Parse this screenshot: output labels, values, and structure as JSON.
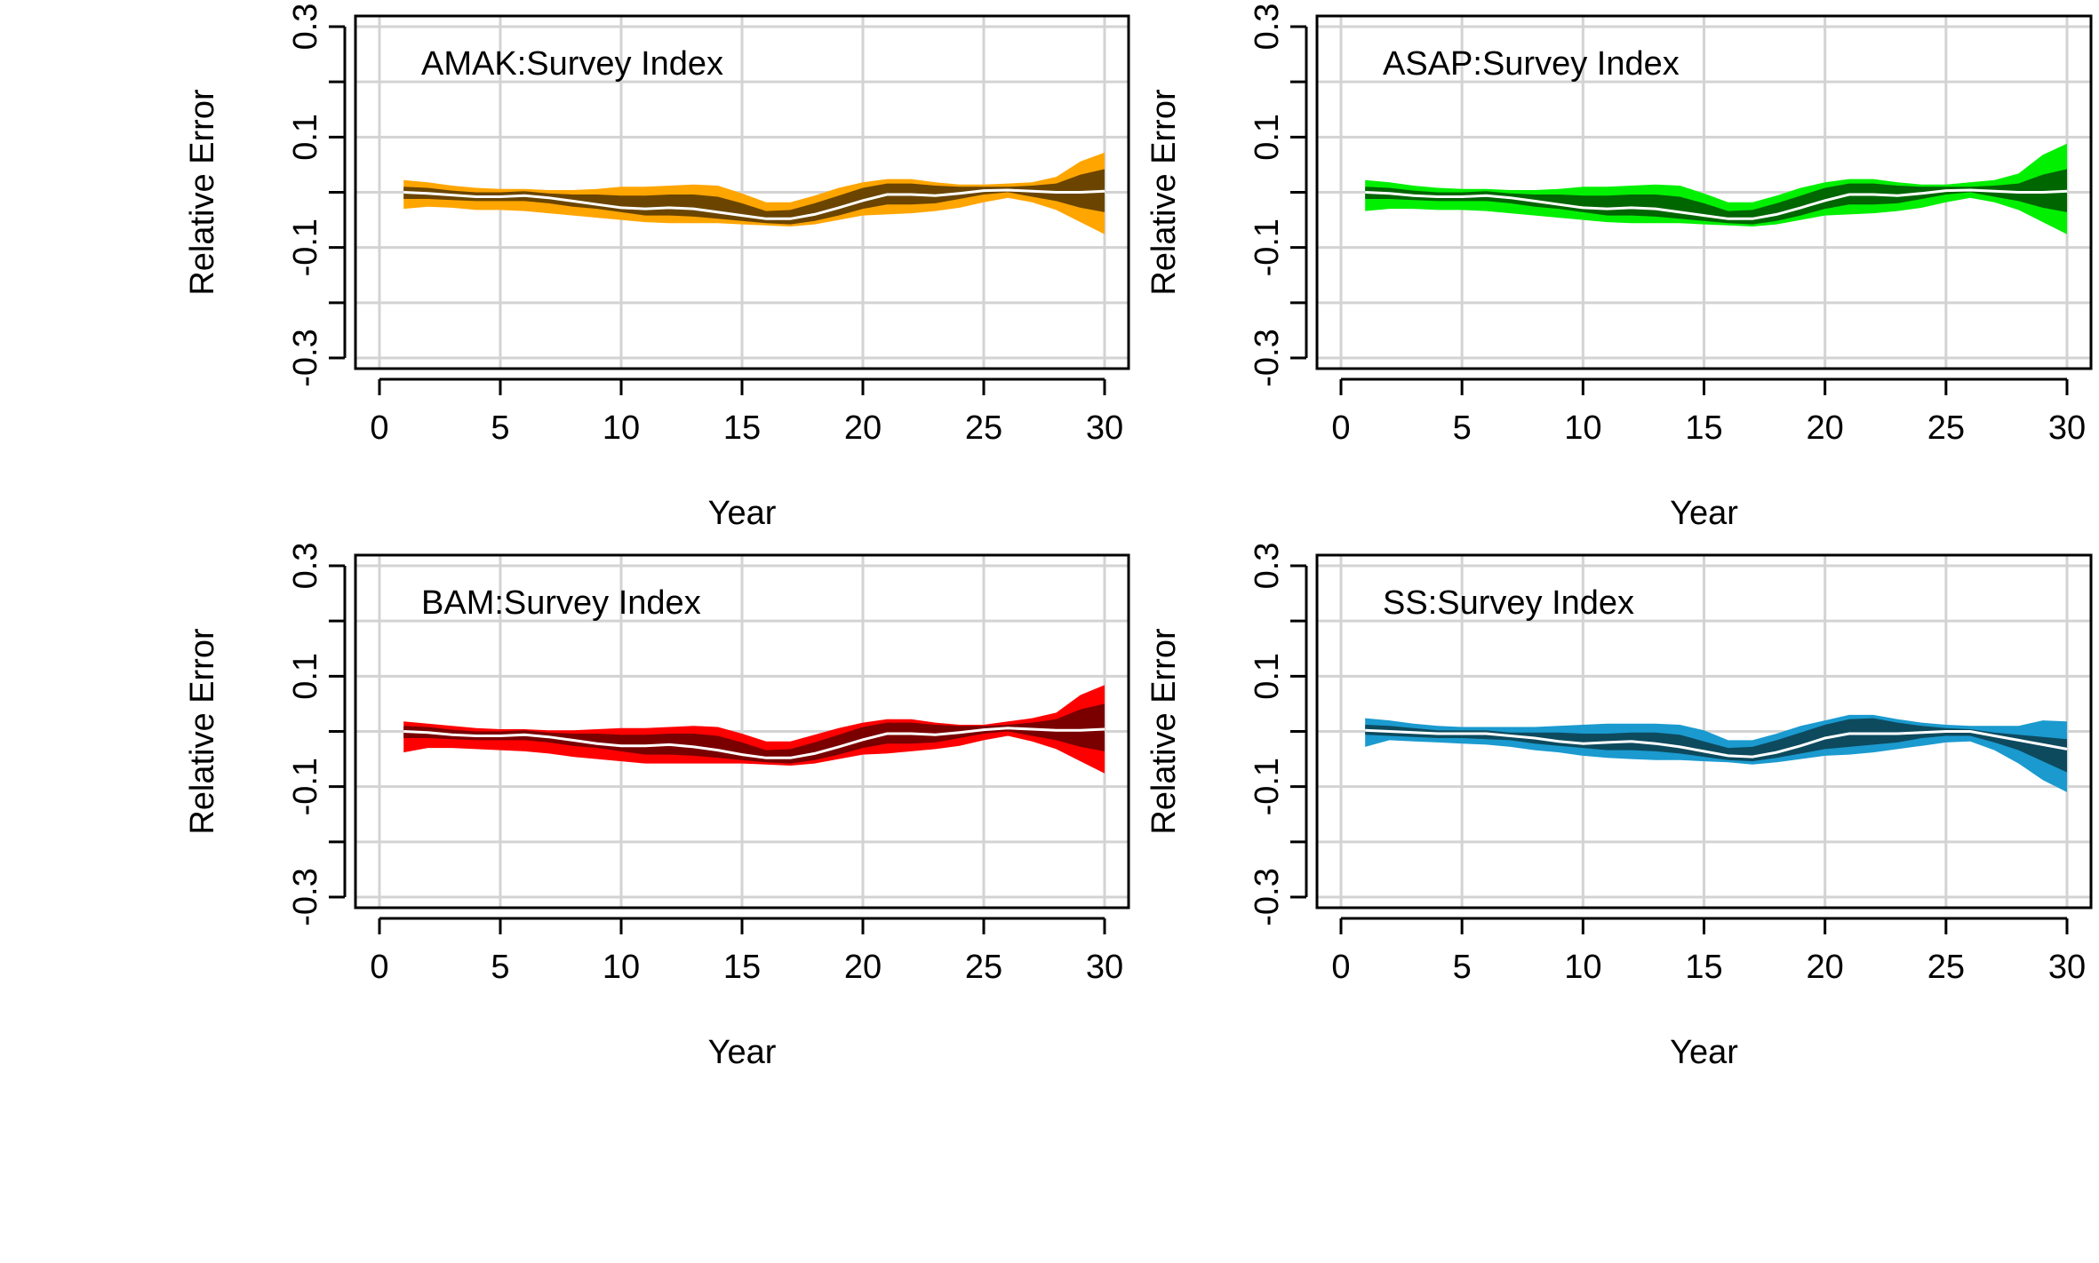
{
  "figure": {
    "background": "#ffffff"
  },
  "chart_data": [
    {
      "type": "area",
      "title": "AMAK:Survey Index",
      "xlabel": "Year",
      "ylabel": "Relative Error",
      "xlim": [
        0,
        30
      ],
      "ylim": [
        -0.3,
        0.3
      ],
      "xticks": [
        0,
        5,
        10,
        15,
        20,
        25,
        30
      ],
      "xtick_labels": [
        "0",
        "5",
        "10",
        "15",
        "20",
        "25",
        "30"
      ],
      "yticks": [
        -0.3,
        -0.2,
        -0.1,
        0.0,
        0.1,
        0.2,
        0.3
      ],
      "ytick_labels": [
        "-0.3",
        "",
        "-0.1",
        "",
        "0.1",
        "",
        "0.3"
      ],
      "grid": true,
      "colors": {
        "outer": "#FFA500",
        "inner": "#6B4500",
        "median": "#ffffff"
      },
      "x": [
        1,
        2,
        3,
        4,
        5,
        6,
        7,
        8,
        9,
        10,
        11,
        12,
        13,
        14,
        15,
        16,
        17,
        18,
        19,
        20,
        21,
        22,
        23,
        24,
        25,
        26,
        27,
        28,
        29,
        30
      ],
      "series": [
        {
          "name": "median",
          "values": [
            0.0,
            -0.002,
            -0.005,
            -0.008,
            -0.008,
            -0.006,
            -0.01,
            -0.016,
            -0.022,
            -0.028,
            -0.03,
            -0.028,
            -0.03,
            -0.036,
            -0.042,
            -0.048,
            -0.048,
            -0.04,
            -0.028,
            -0.015,
            -0.004,
            -0.004,
            -0.006,
            -0.002,
            0.003,
            0.004,
            0.002,
            0.0,
            0.0,
            0.002
          ]
        },
        {
          "name": "inner_upper",
          "values": [
            0.01,
            0.008,
            0.003,
            0.0,
            0.0,
            0.002,
            -0.002,
            -0.004,
            -0.004,
            -0.006,
            -0.006,
            -0.004,
            -0.004,
            -0.008,
            -0.02,
            -0.034,
            -0.032,
            -0.02,
            -0.006,
            0.008,
            0.016,
            0.016,
            0.012,
            0.01,
            0.01,
            0.01,
            0.012,
            0.016,
            0.032,
            0.042
          ]
        },
        {
          "name": "inner_lower",
          "values": [
            -0.012,
            -0.012,
            -0.014,
            -0.016,
            -0.016,
            -0.016,
            -0.02,
            -0.026,
            -0.03,
            -0.036,
            -0.042,
            -0.042,
            -0.044,
            -0.048,
            -0.052,
            -0.056,
            -0.058,
            -0.052,
            -0.042,
            -0.03,
            -0.022,
            -0.022,
            -0.02,
            -0.012,
            -0.004,
            0.0,
            -0.008,
            -0.016,
            -0.028,
            -0.036
          ]
        },
        {
          "name": "outer_upper",
          "values": [
            0.022,
            0.018,
            0.012,
            0.008,
            0.006,
            0.006,
            0.004,
            0.004,
            0.006,
            0.01,
            0.01,
            0.012,
            0.014,
            0.012,
            -0.002,
            -0.018,
            -0.018,
            -0.006,
            0.008,
            0.018,
            0.024,
            0.024,
            0.018,
            0.014,
            0.014,
            0.016,
            0.018,
            0.028,
            0.056,
            0.072
          ]
        },
        {
          "name": "outer_lower",
          "values": [
            -0.03,
            -0.026,
            -0.028,
            -0.032,
            -0.032,
            -0.034,
            -0.038,
            -0.042,
            -0.046,
            -0.05,
            -0.054,
            -0.056,
            -0.056,
            -0.056,
            -0.058,
            -0.06,
            -0.062,
            -0.058,
            -0.05,
            -0.042,
            -0.04,
            -0.038,
            -0.034,
            -0.028,
            -0.018,
            -0.01,
            -0.018,
            -0.032,
            -0.054,
            -0.076
          ]
        }
      ]
    },
    {
      "type": "area",
      "title": "ASAP:Survey Index",
      "xlabel": "Year",
      "ylabel": "Relative Error",
      "xlim": [
        0,
        30
      ],
      "ylim": [
        -0.3,
        0.3
      ],
      "xticks": [
        0,
        5,
        10,
        15,
        20,
        25,
        30
      ],
      "xtick_labels": [
        "0",
        "5",
        "10",
        "15",
        "20",
        "25",
        "30"
      ],
      "yticks": [
        -0.3,
        -0.2,
        -0.1,
        0.0,
        0.1,
        0.2,
        0.3
      ],
      "ytick_labels": [
        "-0.3",
        "",
        "-0.1",
        "",
        "0.1",
        "",
        "0.3"
      ],
      "grid": true,
      "colors": {
        "outer": "#00F000",
        "inner": "#006600",
        "median": "#ffffff"
      },
      "x": [
        1,
        2,
        3,
        4,
        5,
        6,
        7,
        8,
        9,
        10,
        11,
        12,
        13,
        14,
        15,
        16,
        17,
        18,
        19,
        20,
        21,
        22,
        23,
        24,
        25,
        26,
        27,
        28,
        29,
        30
      ],
      "series": [
        {
          "name": "median",
          "values": [
            0.0,
            -0.002,
            -0.006,
            -0.008,
            -0.008,
            -0.006,
            -0.01,
            -0.016,
            -0.022,
            -0.028,
            -0.03,
            -0.028,
            -0.03,
            -0.036,
            -0.042,
            -0.048,
            -0.048,
            -0.04,
            -0.028,
            -0.015,
            -0.004,
            -0.004,
            -0.006,
            -0.002,
            0.003,
            0.004,
            0.002,
            0.0,
            0.0,
            0.002
          ]
        },
        {
          "name": "inner_upper",
          "values": [
            0.01,
            0.008,
            0.003,
            0.0,
            0.0,
            0.002,
            -0.002,
            -0.004,
            -0.004,
            -0.006,
            -0.006,
            -0.004,
            -0.004,
            -0.008,
            -0.02,
            -0.034,
            -0.032,
            -0.02,
            -0.006,
            0.008,
            0.016,
            0.016,
            0.012,
            0.01,
            0.01,
            0.01,
            0.012,
            0.016,
            0.032,
            0.042
          ]
        },
        {
          "name": "inner_lower",
          "values": [
            -0.012,
            -0.012,
            -0.014,
            -0.016,
            -0.016,
            -0.016,
            -0.02,
            -0.026,
            -0.03,
            -0.036,
            -0.042,
            -0.042,
            -0.044,
            -0.048,
            -0.052,
            -0.056,
            -0.058,
            -0.052,
            -0.042,
            -0.03,
            -0.022,
            -0.022,
            -0.02,
            -0.012,
            -0.004,
            0.0,
            -0.008,
            -0.016,
            -0.028,
            -0.036
          ]
        },
        {
          "name": "outer_upper",
          "values": [
            0.022,
            0.018,
            0.012,
            0.008,
            0.006,
            0.006,
            0.004,
            0.004,
            0.006,
            0.01,
            0.01,
            0.012,
            0.014,
            0.012,
            -0.002,
            -0.018,
            -0.018,
            -0.006,
            0.008,
            0.018,
            0.024,
            0.024,
            0.018,
            0.014,
            0.014,
            0.018,
            0.022,
            0.034,
            0.068,
            0.088
          ]
        },
        {
          "name": "outer_lower",
          "values": [
            -0.034,
            -0.03,
            -0.03,
            -0.032,
            -0.032,
            -0.034,
            -0.038,
            -0.042,
            -0.046,
            -0.05,
            -0.054,
            -0.056,
            -0.056,
            -0.056,
            -0.058,
            -0.06,
            -0.062,
            -0.058,
            -0.05,
            -0.042,
            -0.04,
            -0.038,
            -0.034,
            -0.028,
            -0.018,
            -0.01,
            -0.018,
            -0.032,
            -0.054,
            -0.076
          ]
        }
      ]
    },
    {
      "type": "area",
      "title": "BAM:Survey Index",
      "xlabel": "Year",
      "ylabel": "Relative Error",
      "xlim": [
        0,
        30
      ],
      "ylim": [
        -0.3,
        0.3
      ],
      "xticks": [
        0,
        5,
        10,
        15,
        20,
        25,
        30
      ],
      "xtick_labels": [
        "0",
        "5",
        "10",
        "15",
        "20",
        "25",
        "30"
      ],
      "yticks": [
        -0.3,
        -0.2,
        -0.1,
        0.0,
        0.1,
        0.2,
        0.3
      ],
      "ytick_labels": [
        "-0.3",
        "",
        "-0.1",
        "",
        "0.1",
        "",
        "0.3"
      ],
      "grid": true,
      "colors": {
        "outer": "#FF0000",
        "inner": "#7A0000",
        "median": "#ffffff"
      },
      "x": [
        1,
        2,
        3,
        4,
        5,
        6,
        7,
        8,
        9,
        10,
        11,
        12,
        13,
        14,
        15,
        16,
        17,
        18,
        19,
        20,
        21,
        22,
        23,
        24,
        25,
        26,
        27,
        28,
        29,
        30
      ],
      "series": [
        {
          "name": "median",
          "values": [
            0.0,
            -0.002,
            -0.006,
            -0.008,
            -0.008,
            -0.006,
            -0.01,
            -0.016,
            -0.022,
            -0.026,
            -0.026,
            -0.024,
            -0.028,
            -0.034,
            -0.042,
            -0.048,
            -0.048,
            -0.04,
            -0.028,
            -0.015,
            -0.004,
            -0.004,
            -0.006,
            -0.002,
            0.003,
            0.006,
            0.004,
            0.002,
            0.002,
            0.004
          ]
        },
        {
          "name": "inner_upper",
          "values": [
            0.01,
            0.008,
            0.003,
            0.0,
            0.0,
            0.002,
            -0.002,
            -0.004,
            -0.004,
            -0.006,
            -0.006,
            -0.004,
            -0.004,
            -0.008,
            -0.02,
            -0.034,
            -0.032,
            -0.02,
            -0.006,
            0.008,
            0.016,
            0.016,
            0.012,
            0.01,
            0.01,
            0.012,
            0.016,
            0.022,
            0.04,
            0.05
          ]
        },
        {
          "name": "inner_lower",
          "values": [
            -0.012,
            -0.012,
            -0.014,
            -0.016,
            -0.016,
            -0.016,
            -0.02,
            -0.026,
            -0.03,
            -0.036,
            -0.042,
            -0.042,
            -0.044,
            -0.048,
            -0.052,
            -0.056,
            -0.058,
            -0.052,
            -0.042,
            -0.03,
            -0.022,
            -0.022,
            -0.02,
            -0.012,
            -0.004,
            0.0,
            -0.008,
            -0.016,
            -0.028,
            -0.036
          ]
        },
        {
          "name": "outer_upper",
          "values": [
            0.018,
            0.014,
            0.01,
            0.006,
            0.004,
            0.004,
            0.002,
            0.002,
            0.004,
            0.006,
            0.006,
            0.008,
            0.01,
            0.008,
            -0.004,
            -0.018,
            -0.018,
            -0.006,
            0.006,
            0.016,
            0.022,
            0.022,
            0.016,
            0.012,
            0.012,
            0.018,
            0.024,
            0.034,
            0.066,
            0.084
          ]
        },
        {
          "name": "outer_lower",
          "values": [
            -0.038,
            -0.03,
            -0.03,
            -0.032,
            -0.034,
            -0.036,
            -0.04,
            -0.046,
            -0.05,
            -0.054,
            -0.058,
            -0.058,
            -0.058,
            -0.058,
            -0.058,
            -0.06,
            -0.062,
            -0.058,
            -0.05,
            -0.042,
            -0.04,
            -0.036,
            -0.032,
            -0.026,
            -0.016,
            -0.008,
            -0.018,
            -0.032,
            -0.054,
            -0.076
          ]
        }
      ]
    },
    {
      "type": "area",
      "title": "SS:Survey Index",
      "xlabel": "Year",
      "ylabel": "Relative Error",
      "xlim": [
        0,
        30
      ],
      "ylim": [
        -0.3,
        0.3
      ],
      "xticks": [
        0,
        5,
        10,
        15,
        20,
        25,
        30
      ],
      "xtick_labels": [
        "0",
        "5",
        "10",
        "15",
        "20",
        "25",
        "30"
      ],
      "yticks": [
        -0.3,
        -0.2,
        -0.1,
        0.0,
        0.1,
        0.2,
        0.3
      ],
      "ytick_labels": [
        "-0.3",
        "",
        "-0.1",
        "",
        "0.1",
        "",
        "0.3"
      ],
      "grid": true,
      "colors": {
        "outer": "#1A9ACF",
        "inner": "#0D4A5E",
        "median": "#ffffff"
      },
      "x": [
        1,
        2,
        3,
        4,
        5,
        6,
        7,
        8,
        9,
        10,
        11,
        12,
        13,
        14,
        15,
        16,
        17,
        18,
        19,
        20,
        21,
        22,
        23,
        24,
        25,
        26,
        27,
        28,
        29,
        30
      ],
      "series": [
        {
          "name": "median",
          "values": [
            0.002,
            0.0,
            -0.002,
            -0.004,
            -0.004,
            -0.004,
            -0.008,
            -0.012,
            -0.018,
            -0.022,
            -0.02,
            -0.018,
            -0.022,
            -0.028,
            -0.036,
            -0.044,
            -0.046,
            -0.038,
            -0.026,
            -0.012,
            -0.004,
            -0.004,
            -0.004,
            -0.002,
            0.0,
            0.0,
            -0.008,
            -0.016,
            -0.024,
            -0.032
          ]
        },
        {
          "name": "inner_upper",
          "values": [
            0.012,
            0.01,
            0.006,
            0.002,
            0.002,
            0.002,
            -0.002,
            -0.002,
            -0.002,
            -0.004,
            -0.004,
            -0.002,
            -0.002,
            -0.006,
            -0.018,
            -0.03,
            -0.028,
            -0.016,
            -0.002,
            0.012,
            0.022,
            0.024,
            0.016,
            0.01,
            0.006,
            0.004,
            -0.002,
            -0.006,
            -0.01,
            -0.014
          ]
        },
        {
          "name": "inner_lower",
          "values": [
            -0.006,
            -0.008,
            -0.01,
            -0.012,
            -0.012,
            -0.014,
            -0.016,
            -0.022,
            -0.026,
            -0.03,
            -0.034,
            -0.034,
            -0.036,
            -0.04,
            -0.046,
            -0.052,
            -0.054,
            -0.048,
            -0.04,
            -0.032,
            -0.028,
            -0.024,
            -0.02,
            -0.012,
            -0.008,
            -0.008,
            -0.02,
            -0.034,
            -0.054,
            -0.074
          ]
        },
        {
          "name": "outer_upper",
          "values": [
            0.024,
            0.02,
            0.014,
            0.01,
            0.008,
            0.008,
            0.008,
            0.008,
            0.01,
            0.012,
            0.014,
            0.014,
            0.014,
            0.012,
            0.002,
            -0.016,
            -0.016,
            -0.004,
            0.01,
            0.02,
            0.03,
            0.03,
            0.022,
            0.016,
            0.012,
            0.01,
            0.01,
            0.01,
            0.02,
            0.018
          ]
        },
        {
          "name": "outer_lower",
          "values": [
            -0.028,
            -0.016,
            -0.018,
            -0.02,
            -0.022,
            -0.024,
            -0.028,
            -0.034,
            -0.038,
            -0.044,
            -0.048,
            -0.05,
            -0.052,
            -0.052,
            -0.054,
            -0.056,
            -0.06,
            -0.056,
            -0.05,
            -0.044,
            -0.042,
            -0.038,
            -0.032,
            -0.026,
            -0.02,
            -0.018,
            -0.034,
            -0.058,
            -0.088,
            -0.11
          ]
        }
      ]
    }
  ]
}
